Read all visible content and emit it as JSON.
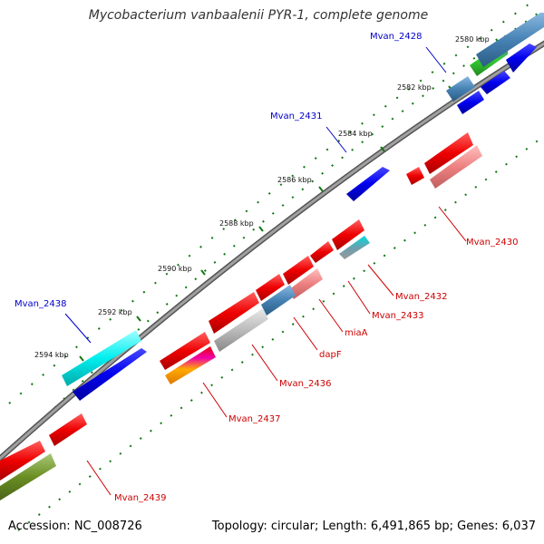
{
  "title": "Mycobacterium vanbaalenii PYR-1, complete genome",
  "footer": {
    "accession": "Accession: NC_008726",
    "topology": "Topology: circular; Length: 6,491,865 bp; Genes: 6,037"
  },
  "ticks": [
    {
      "label": "2580 kbp",
      "major": true
    },
    {
      "label": "2582 kbp",
      "major": true
    },
    {
      "label": "2584 kbp",
      "major": true
    },
    {
      "label": "2586 kbp",
      "major": true
    },
    {
      "label": "2588 kbp",
      "major": true
    },
    {
      "label": "2590 kbp",
      "major": true
    },
    {
      "label": "2592 kbp",
      "major": true
    },
    {
      "label": "2594 kbp",
      "major": true
    }
  ],
  "gene_labels": {
    "mvan_2428": "Mvan_2428",
    "mvan_2430": "Mvan_2430",
    "mvan_2431": "Mvan_2431",
    "mvan_2432": "Mvan_2432",
    "mvan_2433": "Mvan_2433",
    "miaA": "miaA",
    "dapF": "dapF",
    "mvan_2436": "Mvan_2436",
    "mvan_2437": "Mvan_2437",
    "mvan_2438": "Mvan_2438",
    "mvan_2439": "Mvan_2439"
  },
  "colors": {
    "forward_cds": "#0000ee",
    "reverse_cds": "#ee0000",
    "reverse_cds_light": "#ee8888",
    "steel": "#4682b4",
    "gray": "#aaaaaa",
    "cyan": "#00eeee",
    "olive": "#6b8e23",
    "green": "#33cc33",
    "backbone": "#808080",
    "tick": "#117711",
    "label_forward": "#0000cc",
    "label_reverse": "#cc0000"
  }
}
